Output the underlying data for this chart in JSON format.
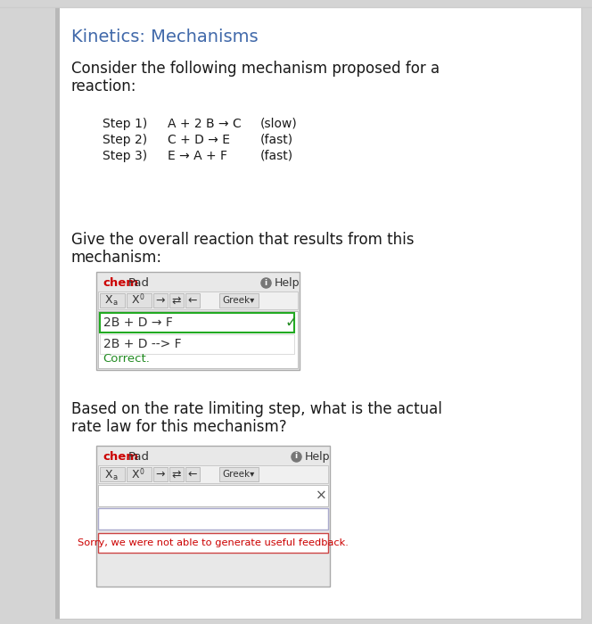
{
  "title": "Kinetics: Mechanisms",
  "title_color": "#4169aa",
  "bg_color": "#ffffff",
  "outer_bg": "#d4d4d4",
  "body_text_color": "#1a1a1a",
  "intro_text_line1": "Consider the following mechanism proposed for a",
  "intro_text_line2": "reaction:",
  "steps": [
    {
      "label": "Step 1)",
      "equation": "A + 2 B → C",
      "rate": "(slow)"
    },
    {
      "label": "Step 2)",
      "equation": "C + D → E",
      "rate": "(fast)"
    },
    {
      "label": "Step 3)",
      "equation": "E → A + F",
      "rate": "(fast)"
    }
  ],
  "question1_line1": "Give the overall reaction that results from this",
  "question1_line2": "mechanism:",
  "question2_line1": "Based on the rate limiting step, what is the actual",
  "question2_line2": "rate law for this mechanism?",
  "chempad_red": "#cc0000",
  "chempad_bg": "#e8e8e8",
  "chempad_border": "#aaaaaa",
  "pad1_answer_line1": "2B + D → F",
  "pad1_answer_line2": "2B + D --> F",
  "pad1_correct": "Correct.",
  "pad1_correct_color": "#228B22",
  "pad2_error": "Sorry, we were not able to generate useful feedback.",
  "pad2_error_color": "#cc0000",
  "tick_color": "#228B22",
  "x_color": "#555555",
  "arrow": "→",
  "double_arrow": "⇄",
  "left_arrow": "←",
  "checkmark": "✓",
  "times": "×",
  "down_triangle": "▾"
}
